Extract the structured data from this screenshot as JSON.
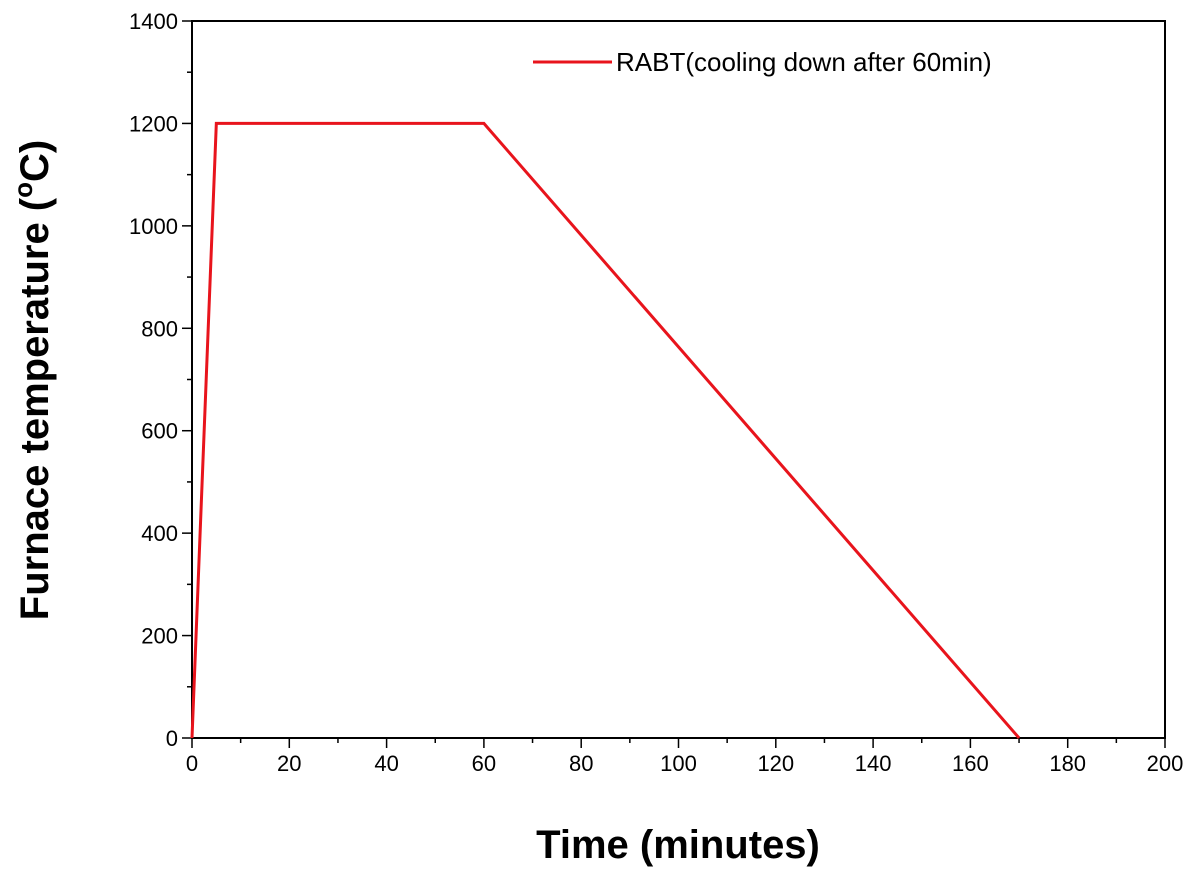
{
  "chart_data": {
    "type": "line",
    "title": "",
    "xlabel": "Time (minutes)",
    "ylabel_main": "Furnace temperature (",
    "ylabel_degree": "o",
    "ylabel_unit": "C)",
    "xlim": [
      0,
      200
    ],
    "ylim": [
      0,
      1400
    ],
    "x_ticks": [
      0,
      20,
      40,
      60,
      80,
      100,
      120,
      140,
      160,
      180,
      200
    ],
    "y_ticks": [
      0,
      200,
      400,
      600,
      800,
      1000,
      1200,
      1400
    ],
    "grid": false,
    "legend_position": "top-right",
    "series": [
      {
        "name": "RABT(cooling down after 60min)",
        "color": "#e8141c",
        "x": [
          0,
          5,
          60,
          170
        ],
        "y": [
          0,
          1200,
          1200,
          0
        ]
      }
    ]
  }
}
